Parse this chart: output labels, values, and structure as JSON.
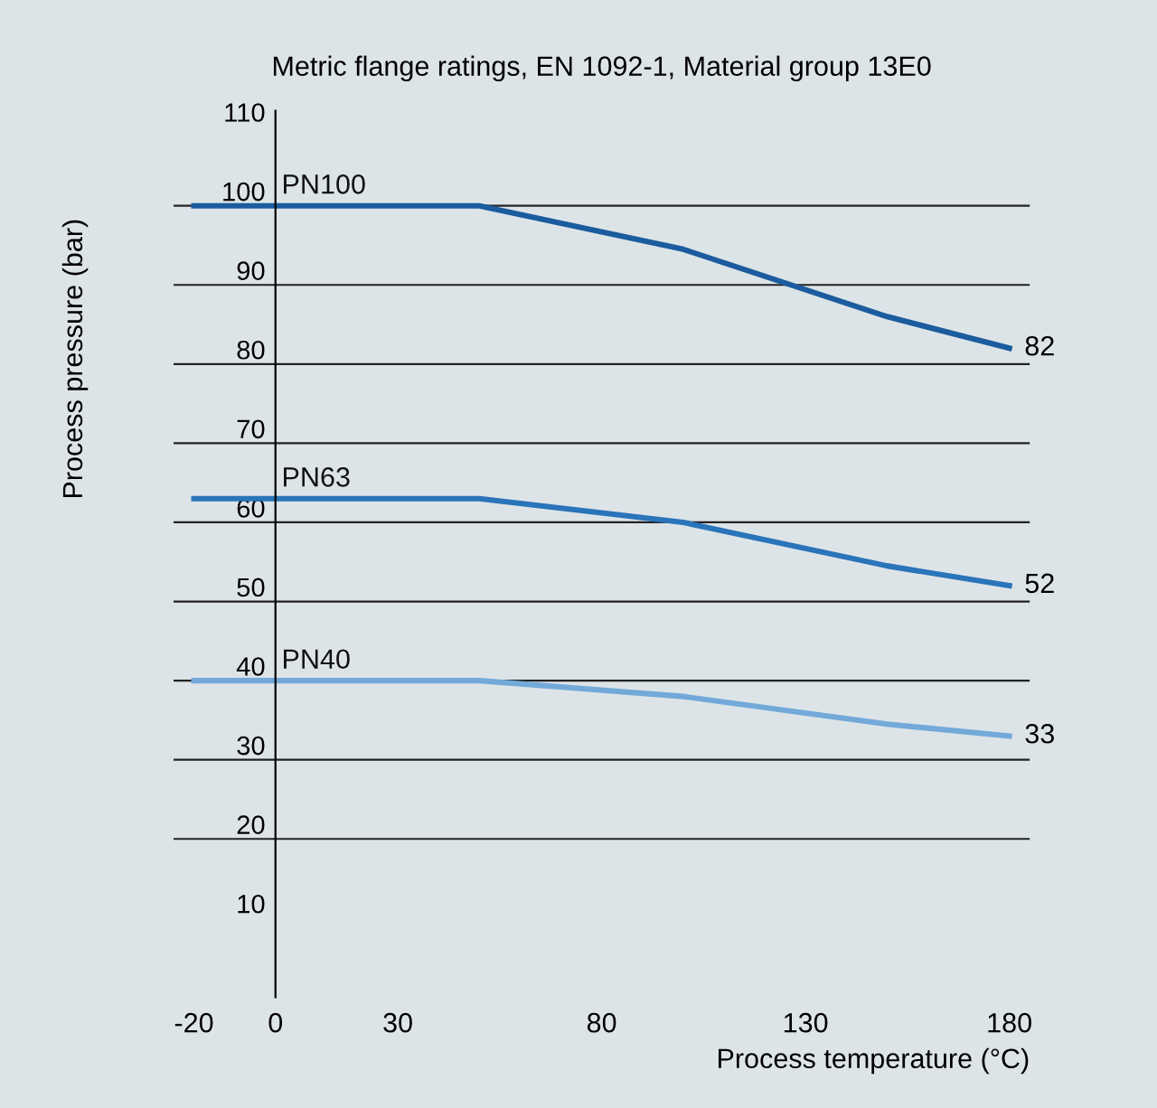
{
  "chart_data": {
    "type": "line",
    "title": "Metric flange ratings, EN 1092-1, Material group 13E0",
    "xlabel": "Process temperature (°C)",
    "ylabel": "Process pressure (bar)",
    "x": [
      -20,
      50,
      100,
      150,
      180
    ],
    "series": [
      {
        "name": "PN100",
        "color": "#1b5c9e",
        "values": [
          100,
          100,
          94.5,
          86,
          82
        ],
        "value_labels": [
          null,
          null,
          null,
          null,
          "82"
        ]
      },
      {
        "name": "PN63",
        "color": "#2a74b9",
        "values": [
          63,
          63,
          60,
          54.5,
          52
        ],
        "value_labels": [
          null,
          null,
          null,
          null,
          "52"
        ]
      },
      {
        "name": "PN40",
        "color": "#72a9d9",
        "values": [
          40,
          40,
          38,
          34.5,
          33
        ],
        "value_labels": [
          null,
          null,
          null,
          null,
          "33"
        ]
      }
    ],
    "xlim": [
      -25,
      185
    ],
    "xticks": [
      -20,
      0,
      30,
      80,
      130,
      180
    ],
    "ylim": [
      0,
      112
    ],
    "yticks": [
      10,
      20,
      30,
      40,
      50,
      60,
      70,
      80,
      90,
      100,
      110
    ],
    "grid": "y",
    "legend": false,
    "marker": "none",
    "line_style": "solid"
  }
}
